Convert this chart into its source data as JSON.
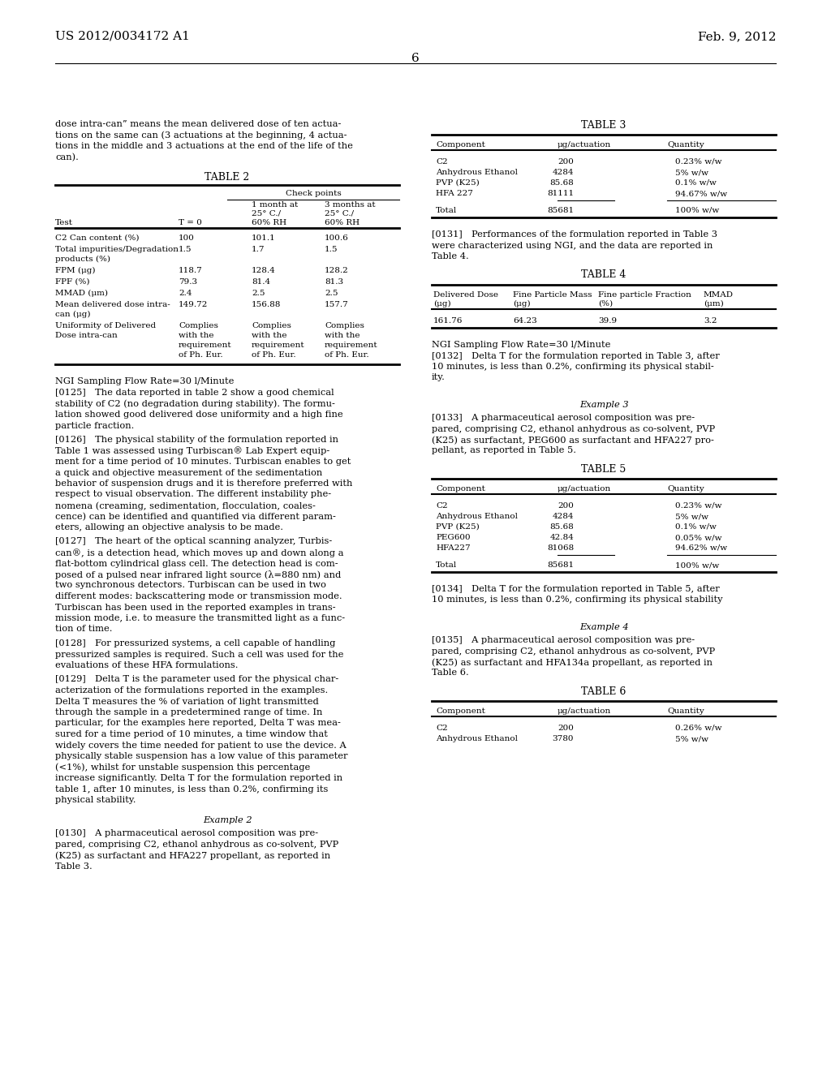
{
  "header_left": "US 2012/0034172 A1",
  "header_right": "Feb. 9, 2012",
  "page_number": "6",
  "bg_color": "#ffffff"
}
